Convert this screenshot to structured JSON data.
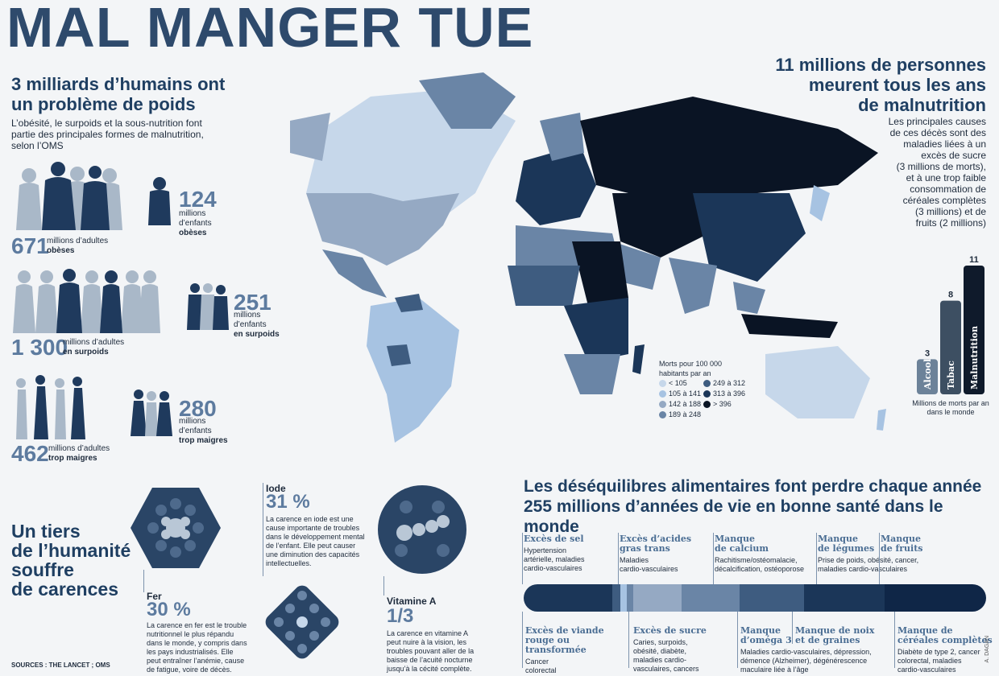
{
  "title": "MAL MANGER TUE",
  "weight": {
    "heading_1": "3 milliards d’humains ont",
    "heading_2": "un problème de poids",
    "desc_1": "L’obésité, le surpoids et la sous-nutrition font",
    "desc_2": "partie des principales formes de malnutrition,",
    "desc_3": "selon l’OMS",
    "adults_obese_num": "671",
    "adults_obese_l1": "millions d’adultes",
    "adults_obese_l2": "obèses",
    "children_obese_num": "124",
    "children_obese_l1": "millions",
    "children_obese_l2": "d’enfants",
    "children_obese_l3": "obèses",
    "adults_over_num": "1 300",
    "adults_over_l1": "millions d’adultes",
    "adults_over_l2": "en surpoids",
    "children_over_num": "251",
    "children_over_l1": "millions",
    "children_over_l2": "d’enfants",
    "children_over_l3": "en surpoids",
    "adults_thin_num": "462",
    "adults_thin_l1": "millions d’adultes",
    "adults_thin_l2": "trop maigres",
    "children_thin_num": "280",
    "children_thin_l1": "millions",
    "children_thin_l2": "d’enfants",
    "children_thin_l3": "trop maigres"
  },
  "deaths": {
    "heading_1": "11 millions de personnes",
    "heading_2": "meurent tous les ans",
    "heading_3": "de malnutrition",
    "desc": [
      "Les principales causes",
      "de ces décès sont des",
      "maladies liées à un",
      "excès de sucre",
      "(3 millions de morts),",
      "et à une trop faible",
      "consommation de",
      "céréales complètes",
      "(3 millions) et de",
      "fruits (2 millions)"
    ]
  },
  "map_legend": {
    "title_1": "Morts pour 100 000",
    "title_2": "habitants par an",
    "items": [
      {
        "label": "< 105",
        "color": "#c6d7ea"
      },
      {
        "label": "105 à 141",
        "color": "#a7c3e2"
      },
      {
        "label": "142 à 188",
        "color": "#95a9c3"
      },
      {
        "label": "189 à 248",
        "color": "#6a85a6"
      },
      {
        "label": "249 à 312",
        "color": "#3e5c80"
      },
      {
        "label": "313 à 396",
        "color": "#1b3658"
      },
      {
        "label": "> 396",
        "color": "#0a1424"
      }
    ]
  },
  "chart_data": {
    "type": "bar",
    "categories": [
      "Alcool",
      "Tabac",
      "Malnutrition"
    ],
    "values": [
      3,
      8,
      11
    ],
    "colors": [
      "#6c8299",
      "#3d4f62",
      "#0f1a2b"
    ],
    "caption": "Millions de morts par an dans le monde"
  },
  "deficiency": {
    "heading": [
      "Un tiers",
      "de l’humanité",
      "souffre",
      "de carences"
    ],
    "fer_label": "Fer",
    "fer_pct": "30 %",
    "fer_text": [
      "La carence en fer est le trouble",
      "nutritionnel le plus répandu",
      "dans le monde, y compris dans",
      "les pays industrialisés. Elle",
      "peut entraîner l’anémie, cause",
      "de fatigue, voire de décès."
    ],
    "iode_label": "Iode",
    "iode_pct": "31 %",
    "iode_text": [
      "La carence en iode est une",
      "cause importante de troubles",
      "dans le développement mental",
      "de l’enfant. Elle peut causer",
      "une diminution des capacités",
      "intellectuelles."
    ],
    "vita_label": "Vitamine A",
    "vita_pct": "1/3",
    "vita_text": [
      "La carence en vitamine A",
      "peut nuire à la vision, les",
      "troubles pouvant aller de la",
      "baisse de l’acuité nocturne",
      "jusqu’à la cécité complète."
    ]
  },
  "dalys": {
    "heading_1": "Les déséquilibres alimentaires font perdre chaque année",
    "heading_2": "255 millions d’années de vie en bonne santé dans le monde",
    "top": [
      {
        "title": [
          "Excès de sel"
        ],
        "desc": [
          "Hypertension",
          "artérielle, maladies",
          "cardio-vasculaires"
        ]
      },
      {
        "title": [
          "Excès d’acides",
          "gras trans"
        ],
        "desc": [
          "Maladies",
          "cardio-vasculaires"
        ]
      },
      {
        "title": [
          "Manque",
          "de calcium"
        ],
        "desc": [
          "Rachitisme/ostéomalacie,",
          "décalcification, ostéoporose"
        ]
      },
      {
        "title": [
          "Manque",
          "de légumes"
        ],
        "desc": [
          "Prise de poids, obésité, cancer,",
          "maladies cardio-vasculaires"
        ]
      },
      {
        "title": [
          "Manque",
          "de fruits"
        ],
        "desc": []
      }
    ],
    "bottom": [
      {
        "title": [
          "Excès de viande",
          "rouge ou",
          "transformée"
        ],
        "desc": [
          "Cancer",
          "colorectal"
        ]
      },
      {
        "title": [
          "Excès de sucre"
        ],
        "desc": [
          "Caries, surpoids,",
          "obésité, diabète,",
          "maladies cardio-",
          "vasculaires, cancers"
        ]
      },
      {
        "title": [
          "Manque",
          "d’oméga 3"
        ],
        "desc": [
          "Maladies cardio-vasculaires, dépression,",
          "démence (Alzheimer), dégénérescence",
          "maculaire liée à l’âge"
        ]
      },
      {
        "title": [
          "Manque de noix",
          "et de graines"
        ],
        "desc": []
      },
      {
        "title": [
          "Manque de",
          "céréales complètes"
        ],
        "desc": [
          "Diabète de type 2, cancer",
          "colorectal, maladies",
          "cardio-vasculaires"
        ]
      }
    ]
  },
  "sources": "SOURCES : THE LANCET ; OMS",
  "credit": "A. DAGAN"
}
